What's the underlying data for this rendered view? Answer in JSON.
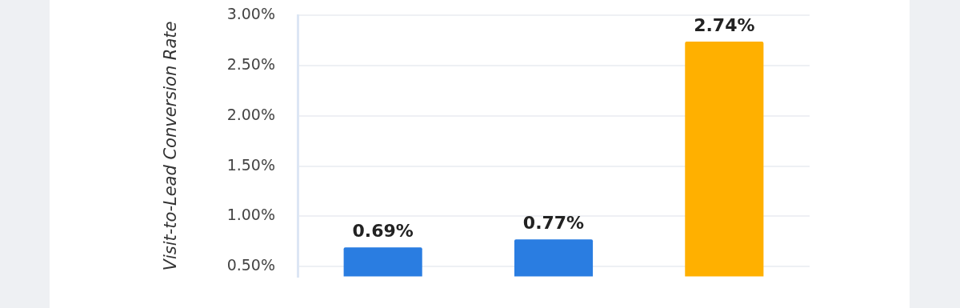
{
  "chart_data": {
    "type": "bar",
    "ylabel": "Visit-to-Lead Conversion Rate",
    "categories": [
      null,
      null,
      null
    ],
    "values": [
      0.69,
      0.77,
      2.74
    ],
    "colors": [
      "#2a7de1",
      "#2a7de1",
      "#ffb000"
    ],
    "value_labels": [
      "0.69%",
      "0.77%",
      "2.74%"
    ],
    "ylim": [
      0.4,
      3.0
    ],
    "yticks": [
      {
        "value": 0.5,
        "label": "0.50%"
      },
      {
        "value": 1.0,
        "label": "1.00%"
      },
      {
        "value": 1.5,
        "label": "1.50%"
      },
      {
        "value": 2.0,
        "label": "2.00%"
      },
      {
        "value": 2.5,
        "label": "2.50%"
      },
      {
        "value": 3.0,
        "label": "3.00%"
      }
    ],
    "grid": "y",
    "legend": false
  }
}
